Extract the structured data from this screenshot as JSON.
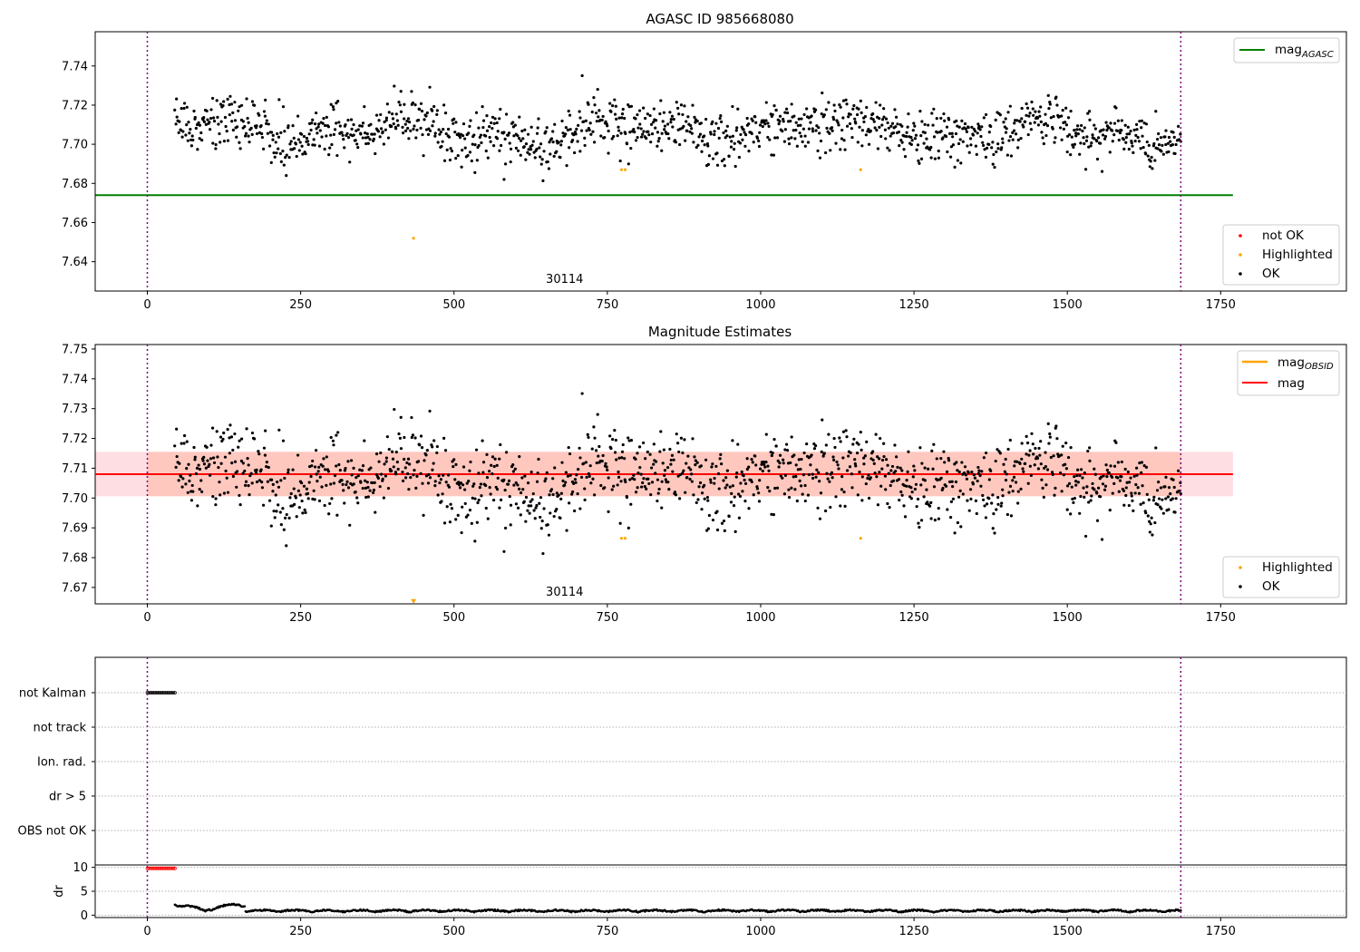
{
  "chart_data": [
    {
      "type": "scatter",
      "title": "AGASC ID 985668080",
      "xlim": [
        -85,
        1955
      ],
      "ylim": [
        7.625,
        7.7575
      ],
      "xticks": [
        0,
        250,
        500,
        750,
        1000,
        1250,
        1500,
        1750
      ],
      "yticks": [
        7.64,
        7.66,
        7.68,
        7.7,
        7.72,
        7.74
      ],
      "ytick_labels": [
        "7.64",
        "7.66",
        "7.68",
        "7.70",
        "7.72",
        "7.74"
      ],
      "vlines": [
        0,
        1685
      ],
      "annotation": {
        "text": "30114",
        "x": 840
      },
      "mag_agasc": {
        "value": 7.674,
        "x": [
          0,
          1770
        ]
      },
      "ok_points": {
        "x_range": [
          45,
          1685
        ],
        "center": 7.707,
        "spread": 0.0065
      },
      "highlighted": [
        [
          773,
          7.687
        ],
        [
          779,
          7.687
        ],
        [
          1163,
          7.687
        ],
        [
          434,
          7.652
        ]
      ],
      "legend_upper": [
        {
          "label_main": "mag",
          "label_sub": "AGASC",
          "color": "#008000",
          "kind": "line"
        }
      ],
      "legend_lower": [
        {
          "label": "not OK",
          "color": "#ff0000",
          "kind": "dot"
        },
        {
          "label": "Highlighted",
          "color": "#ffa500",
          "kind": "dot"
        },
        {
          "label": "OK",
          "color": "#000000",
          "kind": "dot"
        }
      ]
    },
    {
      "type": "scatter",
      "title": "Magnitude Estimates",
      "xlim": [
        -85,
        1955
      ],
      "ylim": [
        7.6645,
        7.7515
      ],
      "xticks": [
        0,
        250,
        500,
        750,
        1000,
        1250,
        1500,
        1750
      ],
      "yticks": [
        7.67,
        7.68,
        7.69,
        7.7,
        7.71,
        7.72,
        7.73,
        7.74,
        7.75
      ],
      "ytick_labels": [
        "7.67",
        "7.68",
        "7.69",
        "7.70",
        "7.71",
        "7.72",
        "7.73",
        "7.74",
        "7.75"
      ],
      "vlines": [
        0,
        1685
      ],
      "annotation": {
        "text": "30114",
        "x": 840
      },
      "mag": {
        "value": 7.708,
        "band": [
          7.7006,
          7.7155
        ],
        "x": [
          -85,
          1770
        ]
      },
      "ok_points": {
        "x_range": [
          45,
          1685
        ],
        "center": 7.707,
        "spread": 0.0065
      },
      "highlighted": [
        [
          773,
          7.6865
        ],
        [
          779,
          7.6865
        ],
        [
          1163,
          7.6865
        ]
      ],
      "highlighted_offscale": [
        [
          434,
          7.6655
        ]
      ],
      "legend_upper": [
        {
          "label_main": "mag",
          "label_sub": "OBSID",
          "color": "#ffa500",
          "kind": "line"
        },
        {
          "label_main": "mag",
          "label_sub": "",
          "color": "#ff0000",
          "kind": "line"
        }
      ],
      "legend_lower": [
        {
          "label": "Highlighted",
          "color": "#ffa500",
          "kind": "dot"
        },
        {
          "label": "OK",
          "color": "#000000",
          "kind": "dot"
        }
      ]
    },
    {
      "type": "scatter",
      "title": "",
      "xlim": [
        -85,
        1955
      ],
      "flags": [
        "not Kalman",
        "not track",
        "Ion. rad.",
        "dr > 5",
        "OBS not OK"
      ],
      "not_kalman_x": [
        0,
        45
      ],
      "vlines": [
        0,
        1685
      ],
      "dr": {
        "ylabel": "dr",
        "ylim": [
          -0.5,
          10.5
        ],
        "yticks": [
          0,
          5,
          10
        ],
        "flagged_value": 9.8,
        "flagged_x": [
          0,
          45
        ],
        "track_x": [
          45,
          1685
        ],
        "mean": 0.55
      },
      "xticks": [
        0,
        250,
        500,
        750,
        1000,
        1250,
        1500,
        1750
      ]
    }
  ]
}
